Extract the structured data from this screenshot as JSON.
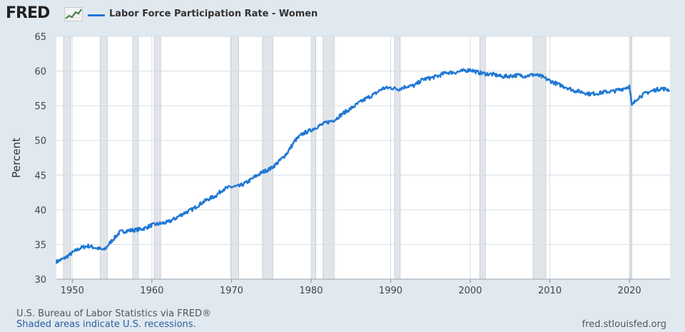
{
  "header": {
    "logo_text": "FRED",
    "logo_icon": "fred-graph-icon",
    "legend_label": "Labor Force Participation Rate - Women",
    "series_color": "#1f77d4"
  },
  "footer": {
    "source": "U.S. Bureau of Labor Statistics via FRED®",
    "recession_note": "Shaded areas indicate U.S. recessions.",
    "url": "fred.stlouisfed.org"
  },
  "chart_data": {
    "type": "line",
    "title": "",
    "xlabel": "",
    "ylabel": "Percent",
    "xlim": [
      1948.0,
      2025.1
    ],
    "ylim": [
      30,
      65
    ],
    "x_ticks": [
      1950,
      1960,
      1970,
      1980,
      1990,
      2000,
      2010,
      2020
    ],
    "y_ticks": [
      30,
      35,
      40,
      45,
      50,
      55,
      60,
      65
    ],
    "grid": true,
    "legend_position": "top-left",
    "series": [
      {
        "name": "Labor Force Participation Rate - Women",
        "color": "#1f77d4",
        "x": [
          1948.0,
          1949.0,
          1950.0,
          1951.0,
          1952.0,
          1953.0,
          1954.0,
          1955.0,
          1956.0,
          1957.0,
          1958.0,
          1959.0,
          1960.0,
          1961.0,
          1962.0,
          1963.0,
          1964.0,
          1965.0,
          1966.0,
          1967.0,
          1968.0,
          1969.0,
          1970.0,
          1971.0,
          1972.0,
          1973.0,
          1974.0,
          1975.0,
          1976.0,
          1977.0,
          1978.0,
          1979.0,
          1980.0,
          1981.0,
          1982.0,
          1983.0,
          1984.0,
          1985.0,
          1986.0,
          1987.0,
          1988.0,
          1989.0,
          1990.0,
          1991.0,
          1992.0,
          1993.0,
          1994.0,
          1995.0,
          1996.0,
          1997.0,
          1998.0,
          1999.0,
          2000.0,
          2001.0,
          2002.0,
          2003.0,
          2004.0,
          2005.0,
          2006.0,
          2007.0,
          2008.0,
          2009.0,
          2010.0,
          2011.0,
          2012.0,
          2013.0,
          2014.0,
          2015.0,
          2016.0,
          2017.0,
          2018.0,
          2019.0,
          2020.0,
          2020.3,
          2021.0,
          2022.0,
          2023.0,
          2024.0,
          2025.0
        ],
        "values": [
          32.5,
          33.0,
          33.8,
          34.5,
          34.8,
          34.5,
          34.2,
          35.6,
          36.8,
          37.0,
          37.1,
          37.3,
          37.8,
          38.0,
          38.2,
          38.8,
          39.5,
          40.0,
          40.8,
          41.5,
          42.0,
          43.0,
          43.3,
          43.4,
          44.0,
          44.8,
          45.5,
          46.0,
          47.0,
          48.2,
          50.0,
          51.0,
          51.5,
          52.1,
          52.6,
          53.0,
          53.9,
          54.6,
          55.4,
          56.1,
          56.7,
          57.5,
          57.6,
          57.4,
          57.8,
          57.9,
          58.8,
          59.0,
          59.3,
          59.8,
          59.8,
          60.0,
          60.2,
          59.8,
          59.6,
          59.5,
          59.2,
          59.3,
          59.4,
          59.3,
          59.5,
          59.2,
          58.6,
          58.1,
          57.7,
          57.2,
          57.0,
          56.7,
          56.8,
          57.0,
          57.1,
          57.4,
          57.8,
          55.0,
          56.1,
          56.8,
          57.2,
          57.5,
          57.3
        ]
      }
    ],
    "recessions": [
      [
        1948.9,
        1949.8
      ],
      [
        1953.5,
        1954.4
      ],
      [
        1957.6,
        1958.3
      ],
      [
        1960.3,
        1961.1
      ],
      [
        1969.9,
        1970.9
      ],
      [
        1973.9,
        1975.2
      ],
      [
        1980.0,
        1980.6
      ],
      [
        1981.5,
        1982.9
      ],
      [
        1990.5,
        1991.2
      ],
      [
        2001.2,
        2001.9
      ],
      [
        2007.9,
        2009.5
      ],
      [
        2020.1,
        2020.3
      ]
    ]
  }
}
